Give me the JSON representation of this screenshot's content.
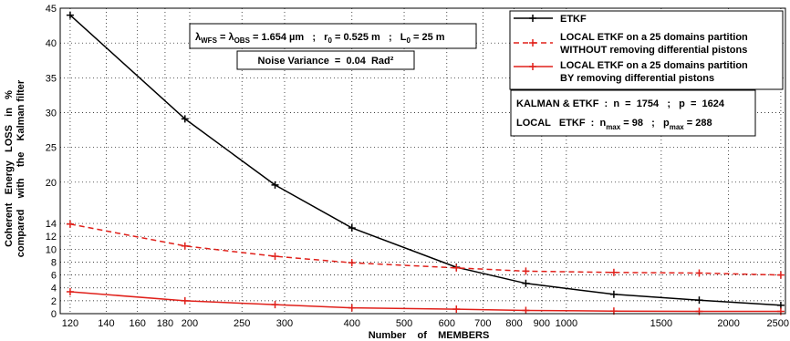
{
  "chart_data": {
    "type": "line",
    "xscale": "log",
    "xlim": [
      115,
      2550
    ],
    "xticks": [
      120,
      140,
      160,
      180,
      200,
      250,
      300,
      400,
      500,
      600,
      700,
      800,
      900,
      1000,
      1500,
      2000,
      2500
    ],
    "xtick_labels": [
      "120",
      "140",
      "160",
      "180",
      "200",
      "250",
      "300",
      "400",
      "500",
      "600",
      "700",
      "800",
      "900",
      "1000",
      "1500",
      "2000",
      "2500"
    ],
    "ylim": [
      0,
      45
    ],
    "yticks": [
      0,
      2,
      4,
      6,
      8,
      10,
      12,
      14,
      20,
      25,
      30,
      35,
      40,
      45
    ],
    "ytick_labels": [
      "0",
      "2",
      "4",
      "6",
      "8",
      "10",
      "12",
      "14",
      "20",
      "25",
      "30",
      "35",
      "40",
      "45"
    ],
    "ybreak": 15,
    "grid": true,
    "xlabel": "Number    of    MEMBERS",
    "ylabel": [
      "Coherent   Energy   LOSS   in   %",
      "compared    with    the    Kalman filter"
    ],
    "series": [
      {
        "name": "ETKF",
        "color": "#000000",
        "dash": "solid",
        "x": [
          120,
          196,
          288,
          400,
          625,
          841,
          1225,
          1764,
          2500
        ],
        "y": [
          44,
          29.1,
          19.6,
          13.3,
          7.2,
          4.7,
          3.0,
          2.1,
          1.3
        ]
      },
      {
        "name": "LOCAL ETKF on a 25 domains partition WITHOUT removing differential pistons",
        "color": "#e0201a",
        "dash": "dashed",
        "x": [
          120,
          196,
          288,
          400,
          625,
          841,
          1225,
          1764,
          2500
        ],
        "y": [
          13.9,
          10.5,
          8.9,
          7.9,
          7.1,
          6.6,
          6.4,
          6.3,
          6.0
        ]
      },
      {
        "name": "LOCAL ETKF on a 25 domains partition BY removing differential pistons",
        "color": "#e0201a",
        "dash": "solid",
        "x": [
          120,
          196,
          288,
          400,
          625,
          841,
          1225,
          1764,
          2500
        ],
        "y": [
          3.4,
          2.0,
          1.4,
          0.9,
          0.7,
          0.5,
          0.4,
          0.35,
          0.35
        ]
      }
    ],
    "legend": {
      "position": "top-right",
      "entries": [
        [
          "ETKF"
        ],
        [
          "LOCAL ETKF on a 25 domains partition",
          "WITHOUT removing differential pistons"
        ],
        [
          "LOCAL ETKF on a 25 domains partition",
          "BY removing differential pistons"
        ]
      ]
    },
    "annotations": {
      "params": {
        "lambda": "λ",
        "wfs_sub": "WFS",
        "eq1": " = ",
        "obs_sub": "OBS",
        "lambda_val": " = 1.654 µm   ;   r",
        "r0_sub": "0",
        "r0_val": " = 0.525 m   ;   L",
        "L0_sub": "0",
        "L0_val": " = 25 m"
      },
      "noise": "Noise Variance  =  0.04  Rad²",
      "kalman": "KALMAN & ETKF  :  n  =  1754   ;   p  =  1624",
      "local": {
        "prefix": "LOCAL   ETKF  :  n",
        "nmax_sub": "max",
        "nmax_val": " = 98   ;   p",
        "pmax_sub": "max",
        "pmax_val": " = 288"
      }
    }
  }
}
